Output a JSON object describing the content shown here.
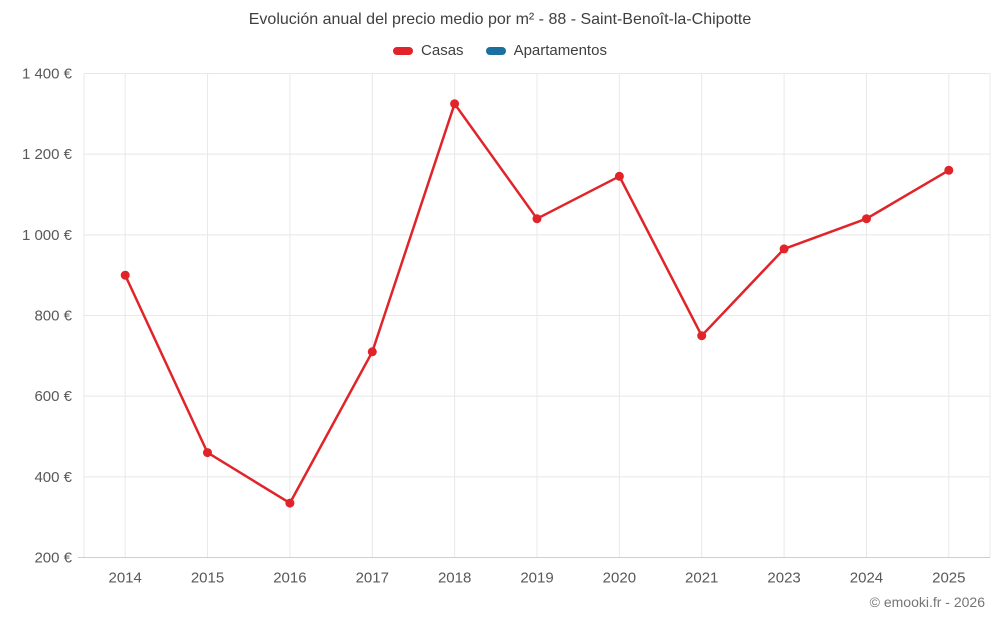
{
  "title": "Evolución anual del precio medio por m² - 88 - Saint-Benoît-la-Chipotte",
  "legend": [
    {
      "label": "Casas",
      "color": "#e02429"
    },
    {
      "label": "Apartamentos",
      "color": "#1a70a0"
    }
  ],
  "footer": "© emooki.fr - 2026",
  "chart_data": {
    "type": "line",
    "title": "Evolución anual del precio medio por m² - 88 - Saint-Benoît-la-Chipotte",
    "categories": [
      "2014",
      "2015",
      "2016",
      "2017",
      "2018",
      "2019",
      "2020",
      "2021",
      "2023",
      "2024",
      "2025"
    ],
    "series": [
      {
        "name": "Casas",
        "color": "#e02429",
        "values": [
          900,
          460,
          335,
          710,
          1325,
          1040,
          1145,
          750,
          965,
          1040,
          1160
        ]
      },
      {
        "name": "Apartamentos",
        "color": "#1a70a0",
        "values": []
      }
    ],
    "ylim": [
      200,
      1400
    ],
    "ytick_step": 200,
    "yticks": [
      "1 400 €",
      "1 200 €",
      "1 000 €",
      "800 €",
      "600 €",
      "400 €",
      "200 €"
    ],
    "currency": "€",
    "grid": true,
    "legend_position": "top",
    "marker_radius": 4.5,
    "line_width": 2.5
  }
}
